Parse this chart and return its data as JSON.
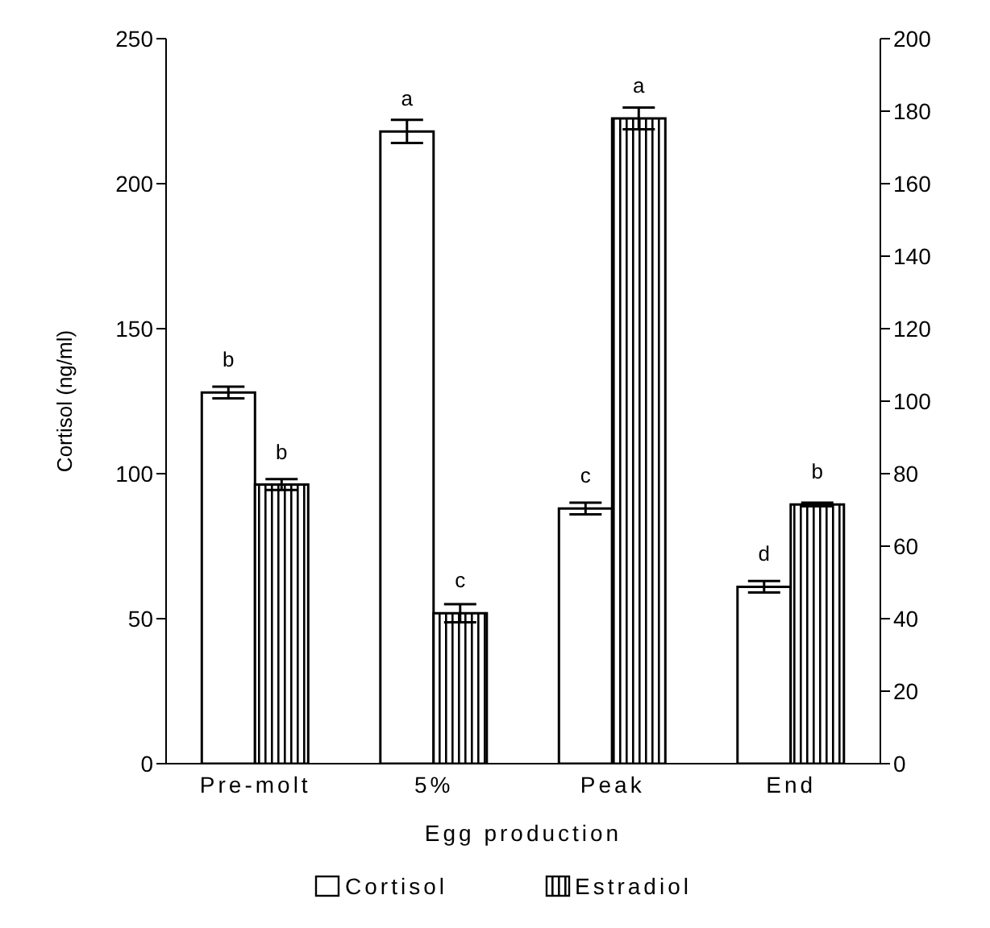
{
  "chart_data": {
    "type": "bar",
    "xlabel": "Egg production",
    "ylabel": "Cortisol (ng/ml)",
    "categories": [
      "Pre-molt",
      "5%",
      "Peak",
      "End"
    ],
    "series": [
      {
        "name": "Cortisol",
        "color": "#ffffff",
        "values": [
          128,
          218,
          88,
          61
        ],
        "errors": [
          2,
          4,
          2,
          2
        ],
        "value_labels": [
          "b",
          "a",
          "c",
          "d"
        ]
      },
      {
        "name": "Estradiol",
        "color": "#000000",
        "axis": "y2",
        "values": [
          77,
          41.5,
          178,
          71.5
        ],
        "errors": [
          1.5,
          2.5,
          3,
          0.5
        ],
        "value_labels": [
          "b",
          "c",
          "a",
          "b"
        ]
      }
    ],
    "ylim": [
      0,
      250
    ],
    "yticks": [
      0,
      50,
      100,
      150,
      200,
      250
    ],
    "y2lim": [
      0,
      200
    ],
    "y2ticks": [
      0,
      20,
      40,
      60,
      80,
      100,
      120,
      140,
      160,
      180,
      200
    ],
    "legend": "bottom"
  }
}
